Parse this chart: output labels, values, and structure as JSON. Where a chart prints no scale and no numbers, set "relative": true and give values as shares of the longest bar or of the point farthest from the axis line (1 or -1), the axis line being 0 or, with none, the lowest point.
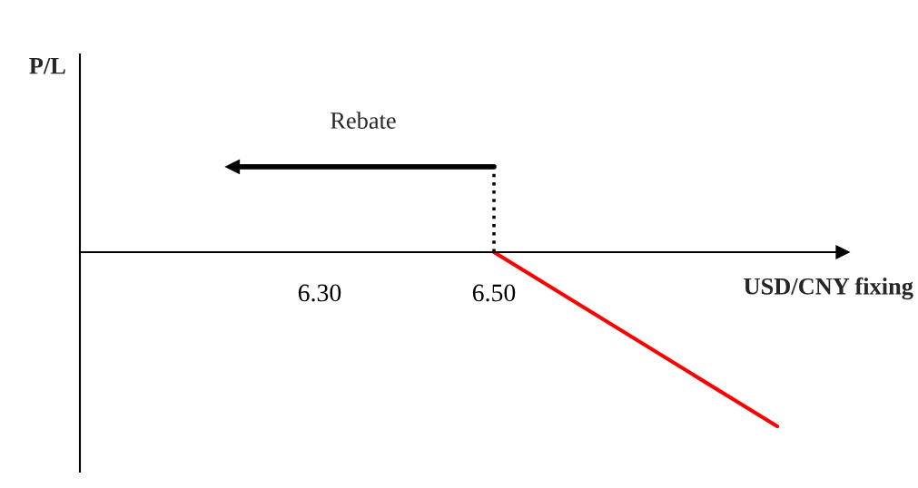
{
  "chart_data": {
    "type": "line",
    "relative": true,
    "xlabel": "USD/CNY fixing",
    "ylabel": "P/L",
    "xlim": [
      6.025,
      6.9
    ],
    "xticks": [
      {
        "value": 6.3,
        "label": "6.30"
      },
      {
        "value": 6.5,
        "label": "6.50"
      }
    ],
    "grid": false,
    "legend": false,
    "series": [
      {
        "x": [
          6.5,
          6.825
        ],
        "values": [
          0,
          -1
        ],
        "color": "#ff0000"
      },
      {
        "x": [
          6.5,
          6.5
        ],
        "values": [
          0,
          0.49
        ],
        "color": "#000000",
        "line_style": "dotted"
      },
      {
        "x": [
          6.5,
          6.2
        ],
        "values": [
          0.49,
          0.49
        ],
        "color": "#000000"
      }
    ],
    "annotations": [
      "Rebate"
    ]
  }
}
